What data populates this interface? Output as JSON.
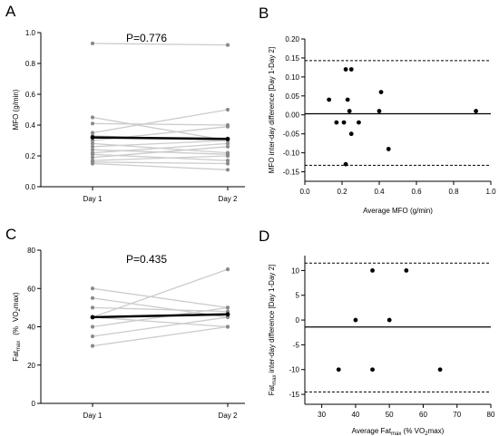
{
  "chart_data": [
    {
      "panel": "A",
      "type": "line",
      "annotation": "P=0.776",
      "xlabel": "",
      "ylabel": "MFO (g/min)",
      "categories": [
        "Day 1",
        "Day 2"
      ],
      "ylim": [
        0,
        1.0
      ],
      "yticks": [
        "0.0",
        "0.2",
        "0.4",
        "0.6",
        "0.8",
        "1.0"
      ],
      "series": [
        {
          "values": [
            0.93,
            0.92
          ]
        },
        {
          "values": [
            0.45,
            0.3
          ]
        },
        {
          "values": [
            0.41,
            0.4
          ]
        },
        {
          "values": [
            0.35,
            0.5
          ]
        },
        {
          "values": [
            0.33,
            0.3
          ]
        },
        {
          "values": [
            0.3,
            0.39
          ]
        },
        {
          "values": [
            0.28,
            0.22
          ]
        },
        {
          "values": [
            0.26,
            0.3
          ]
        },
        {
          "values": [
            0.24,
            0.21
          ]
        },
        {
          "values": [
            0.22,
            0.28
          ]
        },
        {
          "values": [
            0.21,
            0.17
          ]
        },
        {
          "values": [
            0.19,
            0.26
          ]
        },
        {
          "values": [
            0.17,
            0.2
          ]
        },
        {
          "values": [
            0.16,
            0.15
          ]
        },
        {
          "values": [
            0.15,
            0.11
          ]
        }
      ],
      "mean": [
        0.32,
        0.31
      ]
    },
    {
      "panel": "B",
      "type": "scatter",
      "xlabel": "Average MFO (g/min)",
      "ylabel": "MFO inter-day difference [Day 1-Day 2]",
      "xlim": [
        0,
        1.0
      ],
      "ylim": [
        -0.175,
        0.2
      ],
      "xticks": [
        "0.0",
        "0.2",
        "0.4",
        "0.6",
        "0.8",
        "1.0"
      ],
      "yticks": [
        "-0.15",
        "-0.10",
        "-0.05",
        "0.00",
        "0.05",
        "0.10",
        "0.15",
        "0.20"
      ],
      "points": [
        [
          0.13,
          0.04
        ],
        [
          0.17,
          -0.02
        ],
        [
          0.21,
          -0.02
        ],
        [
          0.22,
          0.12
        ],
        [
          0.22,
          -0.13
        ],
        [
          0.23,
          0.04
        ],
        [
          0.24,
          0.01
        ],
        [
          0.25,
          0.12
        ],
        [
          0.25,
          -0.05
        ],
        [
          0.29,
          -0.02
        ],
        [
          0.4,
          0.01
        ],
        [
          0.41,
          0.06
        ],
        [
          0.45,
          -0.09
        ],
        [
          0.92,
          0.01
        ]
      ],
      "mean_line": 0.003,
      "upper_loa": 0.143,
      "lower_loa": -0.133
    },
    {
      "panel": "C",
      "type": "line",
      "annotation": "P=0.435",
      "xlabel": "",
      "ylabel": "Fatmax (% VO2max)",
      "ylabel_parts": {
        "main": "Fat",
        "sub": "max",
        "paren_open": "(",
        "pct": "%",
        "vo": "VO",
        "two": "2",
        "max": "max)"
      },
      "categories": [
        "Day 1",
        "Day 2"
      ],
      "ylim": [
        0,
        80
      ],
      "yticks": [
        "0",
        "20",
        "40",
        "60",
        "80"
      ],
      "series": [
        {
          "values": [
            60,
            50
          ]
        },
        {
          "values": [
            55,
            45
          ]
        },
        {
          "values": [
            50,
            48
          ]
        },
        {
          "values": [
            45,
            70
          ]
        },
        {
          "values": [
            45,
            40
          ]
        },
        {
          "values": [
            40,
            50
          ]
        },
        {
          "values": [
            35,
            45
          ]
        },
        {
          "values": [
            30,
            40
          ]
        }
      ],
      "mean": [
        45,
        46.5
      ]
    },
    {
      "panel": "D",
      "type": "scatter",
      "xlabel": "Average Fatmax (% VO2max)",
      "xlabel_parts": {
        "pre": "Average Fat",
        "sub": "max",
        "mid": " (% VO",
        "two": "2",
        "post": "max)"
      },
      "ylabel": "Fatmax inter-day difference [Day 1-Day 2]",
      "ylabel_parts": {
        "main": "Fat",
        "sub": "max",
        "rest": " inter-day difference [Day 1-Day 2]"
      },
      "xlim": [
        25,
        80
      ],
      "ylim": [
        -17,
        13
      ],
      "xticks": [
        "30",
        "40",
        "50",
        "60",
        "70",
        "80"
      ],
      "yticks": [
        "-15",
        "-10",
        "-5",
        "0",
        "5",
        "10"
      ],
      "points": [
        [
          35,
          -10
        ],
        [
          40,
          0
        ],
        [
          45,
          10
        ],
        [
          45,
          -10
        ],
        [
          50,
          0
        ],
        [
          55,
          10
        ],
        [
          65,
          -10
        ]
      ],
      "mean_line": -1.4,
      "upper_loa": 11.5,
      "lower_loa": -14.5
    }
  ],
  "panels": {
    "a_letter": "A",
    "b_letter": "B",
    "c_letter": "C",
    "d_letter": "D"
  },
  "colors": {
    "individual_line": "#cccccc",
    "individual_marker": "#8a8a8a",
    "mean_line": "#000000",
    "scatter_point": "#000000"
  }
}
